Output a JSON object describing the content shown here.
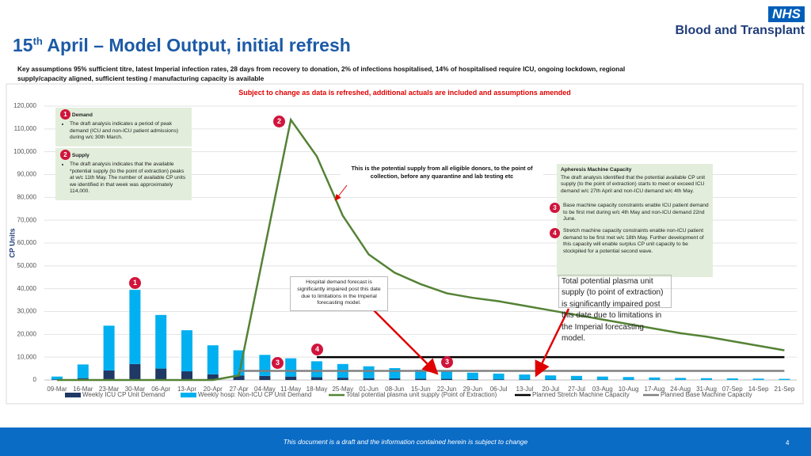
{
  "header": {
    "title_number": "15",
    "title_sup": "th",
    "title_rest": "April – Model Output, initial refresh",
    "logo_mark": "NHS",
    "logo_text": "Blood and Transplant",
    "assumptions": "Key assumptions 95% sufficient titre, latest Imperial infection rates, 28 days from recovery to donation, 2% of infections hospitalised, 14% of hospitalised require ICU, ongoing lockdown, regional supply/capacity aligned, sufficient testing / manufacturing capacity is available",
    "notice": "Subject to change as data is refreshed, additional actuals are included and assumptions amended"
  },
  "chart_data": {
    "type": "bar",
    "stacked": true,
    "ylabel": "CP Units",
    "categories": [
      "09-Mar",
      "16-Mar",
      "23-Mar",
      "30-Mar",
      "06-Apr",
      "13-Apr",
      "20-Apr",
      "27-Apr",
      "04-May",
      "11-May",
      "18-May",
      "25-May",
      "01-Jun",
      "08-Jun",
      "15-Jun",
      "22-Jun",
      "29-Jun",
      "06-Jul",
      "13-Jul",
      "20-Jul",
      "27-Jul",
      "03-Aug",
      "10-Aug",
      "17-Aug",
      "24-Aug",
      "31-Aug",
      "07-Sep",
      "14-Sep",
      "21-Sep"
    ],
    "series": [
      {
        "name": "Weekly ICU CP Unit Demand",
        "type": "bar",
        "color": "#1f3864",
        "values": [
          200,
          800,
          4200,
          7000,
          5000,
          3800,
          2500,
          2000,
          1800,
          1500,
          1200,
          1000,
          800,
          700,
          600,
          500,
          400,
          300,
          250,
          200,
          150,
          120,
          100,
          80,
          60,
          50,
          40,
          30,
          20
        ]
      },
      {
        "name": "Weekly hosp: Non-ICU CP Unit Demand",
        "type": "bar",
        "color": "#00b0f0",
        "values": [
          1300,
          6000,
          19600,
          32500,
          23500,
          18000,
          12700,
          11000,
          9200,
          8000,
          7000,
          6000,
          5200,
          4500,
          3900,
          3300,
          2800,
          2500,
          2150,
          1800,
          1650,
          1380,
          1200,
          1020,
          840,
          750,
          660,
          570,
          480
        ]
      },
      {
        "name": "Total potential plasma unit supply (Point of Extraction)",
        "type": "line",
        "color": "#548235",
        "values": [
          0,
          0,
          0,
          0,
          0,
          0,
          0,
          2000,
          58000,
          114000,
          98000,
          72000,
          55000,
          47000,
          42000,
          38000,
          36000,
          34500,
          32500,
          30500,
          28500,
          26500,
          24500,
          22500,
          20500,
          19000,
          17000,
          15000,
          13000
        ]
      },
      {
        "name": "Planned Stretch Machine Capacity",
        "type": "line",
        "color": "#000000",
        "values": [
          null,
          null,
          null,
          null,
          null,
          null,
          null,
          null,
          null,
          null,
          10000,
          10000,
          10000,
          10000,
          10000,
          10000,
          10000,
          10000,
          10000,
          10000,
          10000,
          10000,
          10000,
          10000,
          10000,
          10000,
          10000,
          10000,
          10000
        ]
      },
      {
        "name": "Planned Base Machine Capacity",
        "type": "line",
        "color": "#808080",
        "values": [
          null,
          null,
          null,
          null,
          null,
          null,
          null,
          4000,
          4000,
          4000,
          4000,
          4000,
          4000,
          4000,
          4000,
          4000,
          4000,
          4000,
          4000,
          4000,
          4000,
          4000,
          4000,
          4000,
          4000,
          4000,
          4000,
          4000,
          4000
        ]
      }
    ],
    "ylim": [
      0,
      120000
    ],
    "yticks": [
      0,
      {
        "value": 10000,
        "label": "10,000"
      },
      {
        "value": 20000,
        "label": "20,000"
      },
      {
        "value": 30000,
        "label": "30,000"
      },
      {
        "value": 40000,
        "label": "40,000"
      },
      {
        "value": 50000,
        "label": "50,000"
      },
      {
        "value": 60000,
        "label": "60,000"
      },
      {
        "value": 70000,
        "label": "70,000"
      },
      {
        "value": 80000,
        "label": "80,000"
      },
      {
        "value": 90000,
        "label": "90,000"
      },
      {
        "value": 100000,
        "label": "100,000"
      },
      {
        "value": 110000,
        "label": "110,000"
      },
      {
        "value": 120000,
        "label": "120,000"
      }
    ],
    "grid": true,
    "legend": "bottom"
  },
  "annotations": {
    "demand": {
      "badge": "1",
      "heading": "Demand",
      "text": "The draft analysis indicates a period of peak demand (ICU and non-ICU patient admissions) during w/c 30th March."
    },
    "supply": {
      "badge": "2",
      "heading": "Supply",
      "text": "The draft analysis indicates that the available *potential supply (to the point of extraction) peaks at w/c 11th May. The number of available CP units we identified in that week was approximately 114,000."
    },
    "potential_note": "This is the potential supply from all eligible donors, to the point of collection, before any quarantine and lab testing etc",
    "apheresis": {
      "heading": "Apheresis Machine Capacity",
      "text": "The draft analysis identified that the potential available CP unit supply (to the point of extraction) starts to meet or exceed ICU demand w/c 27th April and non-ICU demand w/c 4th May.",
      "items": [
        {
          "badge": "3",
          "text": "Base machine capacity constraints enable ICU patient demand to be first met during w/c 4th May and non-ICU demand 22nd June."
        },
        {
          "badge": "4",
          "text": "Stretch machine capacity constraints enable non-ICU patient demand to be first met w/c 18th May. Further development of this capacity will enable surplus CP unit capacity to be stockpiled for a potential second wave."
        }
      ]
    },
    "hospital_note": "Hospital demand forecast is significantly impaired post this date due to limitations in the Imperial forecasting model.",
    "supply_note": "Total potential plasma unit supply (to point of extraction) is significantly impaired post this date due to limitations in the Imperial forecasting model.",
    "chart_badges": [
      "2",
      "1",
      "4",
      "3",
      "3"
    ]
  },
  "footer": {
    "text": "This document is a draft and the information contained herein is subject to change",
    "page": "4"
  }
}
